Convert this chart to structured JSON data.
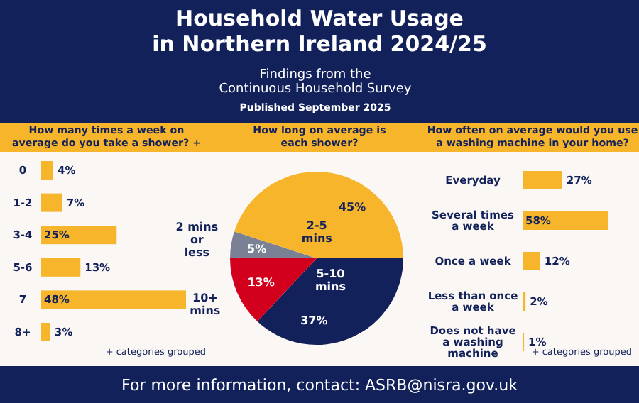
{
  "chart_data": [
    {
      "type": "other",
      "title": "Household Water Usage in Northern Ireland 2024/25",
      "subtitle": "Findings from the Continuous Household Survey",
      "annotations": [
        "Published September 2025",
        "For more information, contact: ASRB@nisra.gov.uk"
      ]
    },
    {
      "type": "bar",
      "orientation": "horizontal",
      "title": "How many times a week on average do you take a shower? +",
      "categories": [
        "0",
        "1-2",
        "3-4",
        "5-6",
        "7",
        "8+"
      ],
      "values": [
        4,
        7,
        25,
        13,
        48,
        3
      ],
      "value_labels": [
        "4%",
        "7%",
        "25%",
        "13%",
        "48%",
        "3%"
      ],
      "color": "#f7b52c",
      "annotations": [
        "+ categories grouped"
      ]
    },
    {
      "type": "pie",
      "title": "How long on average is each shower?",
      "categories": [
        "5-10 mins",
        "10+ mins",
        "2 mins or less",
        "2-5 mins"
      ],
      "values": [
        37,
        13,
        5,
        45
      ],
      "colors": [
        "#12215a",
        "#d2001c",
        "#7b8195",
        "#f7b52c"
      ],
      "value_labels": [
        "37%",
        "13%",
        "5%",
        "45%"
      ]
    },
    {
      "type": "bar",
      "orientation": "horizontal",
      "title": "How often on average would you use a washing machine in your home?",
      "categories": [
        "Everyday",
        "Several times a week",
        "Once a week",
        "Less than once a week",
        "Does not have a washing machine"
      ],
      "values": [
        27,
        58,
        12,
        2,
        1
      ],
      "value_labels": [
        "27%",
        "58%",
        "12%",
        "2%",
        "1%"
      ],
      "color": "#f7b52c",
      "annotations": [
        "+ categories grouped"
      ]
    }
  ]
}
